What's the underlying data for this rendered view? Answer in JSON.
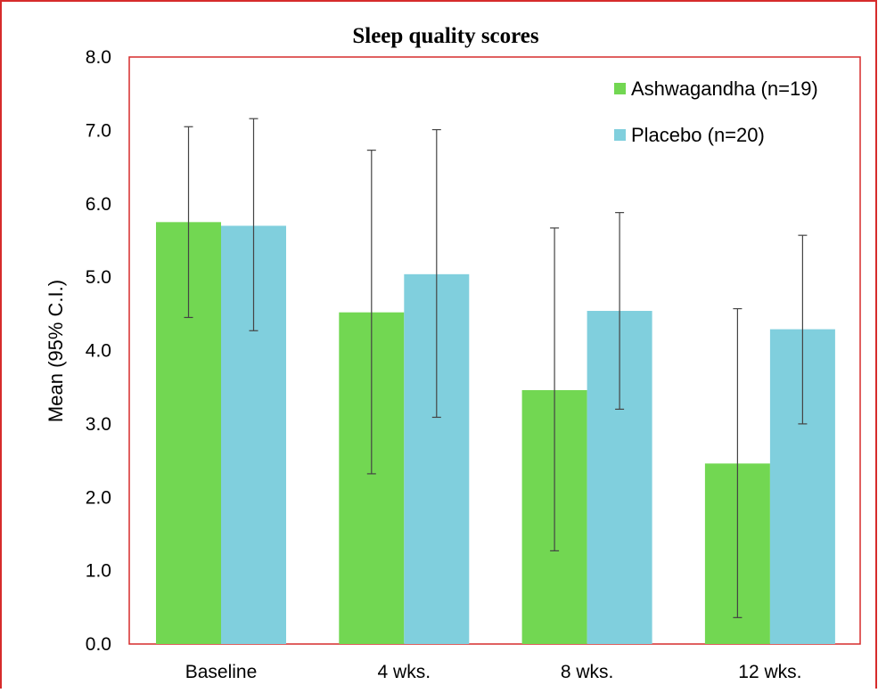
{
  "chart_data": {
    "type": "bar",
    "title": "Sleep quality scores",
    "xlabel": "",
    "ylabel": "Mean (95% C.I.)",
    "ylim": [
      0,
      8
    ],
    "yticks": [
      "0.0",
      "1.0",
      "2.0",
      "3.0",
      "4.0",
      "5.0",
      "6.0",
      "7.0",
      "8.0"
    ],
    "categories": [
      "Baseline",
      "4 wks.",
      "8 wks.",
      "12 wks."
    ],
    "series": [
      {
        "name": "Ashwagandha (n=19)",
        "color": "#72d752",
        "values": [
          5.75,
          4.52,
          3.46,
          2.46
        ],
        "ci_low": [
          4.45,
          2.32,
          1.27,
          0.36
        ],
        "ci_high": [
          7.05,
          6.73,
          5.67,
          4.57
        ]
      },
      {
        "name": "Placebo (n=20)",
        "color": "#80cfdd",
        "values": [
          5.7,
          5.04,
          4.54,
          4.29
        ],
        "ci_low": [
          4.27,
          3.09,
          3.2,
          3.0
        ],
        "ci_high": [
          7.16,
          7.01,
          5.88,
          5.57
        ]
      }
    ],
    "legend_position": "top-right",
    "grid": false,
    "frame_color": "#d62b2b"
  }
}
